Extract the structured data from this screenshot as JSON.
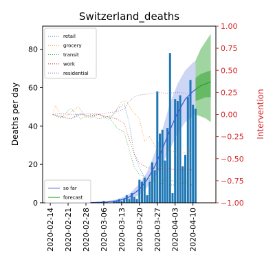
{
  "chart_data": {
    "type": "bar",
    "title": "Switzerland_deaths",
    "xlabel": "",
    "ylabel": "Deaths per day",
    "ylabel_right": "Intervention",
    "colors": {
      "bars": "#1f77b4",
      "so_far": "#3b5bdb",
      "forecast": "#2ca02c",
      "right_axis": "#d62728",
      "retail": "#1f77b4",
      "grocery": "#ff7f0e",
      "transit": "#2ca02c",
      "work": "#d62728",
      "residential": "#9467bd"
    },
    "x_ticks": [
      "2020-02-14",
      "2020-02-21",
      "2020-02-28",
      "2020-03-06",
      "2020-03-13",
      "2020-03-20",
      "2020-03-27",
      "2020-04-03",
      "2020-04-10"
    ],
    "y_ticks": [
      0,
      20,
      40,
      60,
      80
    ],
    "y_right_ticks": [
      "1.00",
      "0.75",
      "0.50",
      "0.25",
      "0.00",
      "−0.25",
      "−0.50",
      "−0.75",
      "−1.00"
    ],
    "y_right_values": [
      1.0,
      0.75,
      0.5,
      0.25,
      0.0,
      -0.25,
      -0.5,
      -0.75,
      -1.0
    ],
    "ylim": [
      0,
      92
    ],
    "ylim_right": [
      -1.0,
      1.0
    ],
    "xlim": [
      "2020-02-11",
      "2020-04-19"
    ],
    "legend_top": {
      "placement": "top-left",
      "items": [
        {
          "label": "retail",
          "key": "retail"
        },
        {
          "label": "grocery",
          "key": "grocery"
        },
        {
          "label": "transit",
          "key": "transit"
        },
        {
          "label": "work",
          "key": "work"
        },
        {
          "label": "residential",
          "key": "residential"
        }
      ]
    },
    "legend_bottom": {
      "placement": "bottom-left",
      "items": [
        {
          "label": "so far",
          "key": "so_far"
        },
        {
          "label": "forecast",
          "key": "forecast"
        }
      ]
    },
    "bars": [
      {
        "date": "2020-03-06",
        "value": 1
      },
      {
        "date": "2020-03-10",
        "value": 1
      },
      {
        "date": "2020-03-11",
        "value": 1
      },
      {
        "date": "2020-03-12",
        "value": 2
      },
      {
        "date": "2020-03-13",
        "value": 1
      },
      {
        "date": "2020-03-14",
        "value": 2
      },
      {
        "date": "2020-03-15",
        "value": 4
      },
      {
        "date": "2020-03-16",
        "value": 2
      },
      {
        "date": "2020-03-17",
        "value": 5
      },
      {
        "date": "2020-03-18",
        "value": 3
      },
      {
        "date": "2020-03-19",
        "value": 2
      },
      {
        "date": "2020-03-20",
        "value": 12
      },
      {
        "date": "2020-03-21",
        "value": 11
      },
      {
        "date": "2020-03-22",
        "value": 13
      },
      {
        "date": "2020-03-23",
        "value": 4
      },
      {
        "date": "2020-03-24",
        "value": 11
      },
      {
        "date": "2020-03-25",
        "value": 21
      },
      {
        "date": "2020-03-26",
        "value": 17
      },
      {
        "date": "2020-03-27",
        "value": 58
      },
      {
        "date": "2020-03-28",
        "value": 36
      },
      {
        "date": "2020-03-29",
        "value": 38
      },
      {
        "date": "2020-03-30",
        "value": 22
      },
      {
        "date": "2020-03-31",
        "value": 39
      },
      {
        "date": "2020-04-01",
        "value": 78
      },
      {
        "date": "2020-04-02",
        "value": 5
      },
      {
        "date": "2020-04-03",
        "value": 54
      },
      {
        "date": "2020-04-04",
        "value": 53
      },
      {
        "date": "2020-04-05",
        "value": 56
      },
      {
        "date": "2020-04-06",
        "value": 19
      },
      {
        "date": "2020-04-07",
        "value": 25
      },
      {
        "date": "2020-04-08",
        "value": 55
      },
      {
        "date": "2020-04-09",
        "value": 64
      },
      {
        "date": "2020-04-10",
        "value": 51
      },
      {
        "date": "2020-04-11",
        "value": 49
      }
    ],
    "so_far": {
      "line": [
        [
          "2020-02-14",
          0
        ],
        [
          "2020-03-01",
          0.1
        ],
        [
          "2020-03-07",
          0.4
        ],
        [
          "2020-03-12",
          1.2
        ],
        [
          "2020-03-16",
          3
        ],
        [
          "2020-03-20",
          7
        ],
        [
          "2020-03-23",
          12
        ],
        [
          "2020-03-26",
          19
        ],
        [
          "2020-03-29",
          28
        ],
        [
          "2020-04-01",
          38
        ],
        [
          "2020-04-04",
          47
        ],
        [
          "2020-04-07",
          54
        ],
        [
          "2020-04-10",
          58
        ],
        [
          "2020-04-11",
          59
        ]
      ],
      "upper": [
        [
          "2020-02-14",
          0
        ],
        [
          "2020-03-01",
          0.2
        ],
        [
          "2020-03-07",
          0.8
        ],
        [
          "2020-03-12",
          2
        ],
        [
          "2020-03-16",
          4.5
        ],
        [
          "2020-03-20",
          10
        ],
        [
          "2020-03-23",
          16
        ],
        [
          "2020-03-26",
          26
        ],
        [
          "2020-03-29",
          38
        ],
        [
          "2020-04-01",
          52
        ],
        [
          "2020-04-04",
          62
        ],
        [
          "2020-04-07",
          69
        ],
        [
          "2020-04-10",
          73
        ],
        [
          "2020-04-11",
          74
        ]
      ],
      "lower": [
        [
          "2020-02-14",
          0
        ],
        [
          "2020-03-01",
          0
        ],
        [
          "2020-03-07",
          0.2
        ],
        [
          "2020-03-12",
          0.5
        ],
        [
          "2020-03-16",
          1.5
        ],
        [
          "2020-03-20",
          4
        ],
        [
          "2020-03-23",
          8
        ],
        [
          "2020-03-26",
          13
        ],
        [
          "2020-03-29",
          20
        ],
        [
          "2020-04-01",
          28
        ],
        [
          "2020-04-04",
          36
        ],
        [
          "2020-04-07",
          42
        ],
        [
          "2020-04-10",
          45
        ],
        [
          "2020-04-11",
          46
        ]
      ]
    },
    "forecast": {
      "line": [
        [
          "2020-04-11",
          59
        ],
        [
          "2020-04-13",
          61
        ],
        [
          "2020-04-15",
          62
        ],
        [
          "2020-04-17",
          63
        ]
      ],
      "upper": [
        [
          "2020-04-11",
          74
        ],
        [
          "2020-04-13",
          80
        ],
        [
          "2020-04-15",
          84
        ],
        [
          "2020-04-17",
          88
        ]
      ],
      "lower": [
        [
          "2020-04-11",
          46
        ],
        [
          "2020-04-13",
          45
        ],
        [
          "2020-04-15",
          44
        ],
        [
          "2020-04-17",
          42
        ]
      ],
      "inner_upper": [
        [
          "2020-04-11",
          65
        ],
        [
          "2020-04-13",
          67
        ],
        [
          "2020-04-15",
          68
        ],
        [
          "2020-04-17",
          69
        ]
      ],
      "inner_lower": [
        [
          "2020-04-11",
          53
        ],
        [
          "2020-04-13",
          54
        ],
        [
          "2020-04-15",
          55
        ],
        [
          "2020-04-17",
          55
        ]
      ]
    },
    "interventions": [
      {
        "key": "retail",
        "points": [
          [
            "2020-02-15",
            0.0
          ],
          [
            "2020-02-18",
            -0.02
          ],
          [
            "2020-02-22",
            -0.05
          ],
          [
            "2020-02-26",
            0.02
          ],
          [
            "2020-03-01",
            -0.04
          ],
          [
            "2020-03-04",
            0.01
          ],
          [
            "2020-03-08",
            -0.06
          ],
          [
            "2020-03-11",
            0.05
          ],
          [
            "2020-03-14",
            0.12
          ],
          [
            "2020-03-16",
            -0.1
          ],
          [
            "2020-03-18",
            -0.45
          ],
          [
            "2020-03-20",
            -0.6
          ],
          [
            "2020-03-22",
            -0.72
          ],
          [
            "2020-03-25",
            -0.76
          ],
          [
            "2020-03-29",
            -0.78
          ],
          [
            "2020-04-02",
            -0.8
          ],
          [
            "2020-04-06",
            -0.78
          ],
          [
            "2020-04-10",
            -0.8
          ]
        ]
      },
      {
        "key": "grocery",
        "points": [
          [
            "2020-02-15",
            -0.01
          ],
          [
            "2020-02-16",
            0.1
          ],
          [
            "2020-02-19",
            -0.04
          ],
          [
            "2020-02-22",
            0.02
          ],
          [
            "2020-02-25",
            0.09
          ],
          [
            "2020-02-28",
            -0.04
          ],
          [
            "2020-03-03",
            0.01
          ],
          [
            "2020-03-07",
            -0.03
          ],
          [
            "2020-03-10",
            0.0
          ],
          [
            "2020-03-13",
            0.15
          ],
          [
            "2020-03-15",
            0.15
          ],
          [
            "2020-03-17",
            0.05
          ],
          [
            "2020-03-20",
            -0.05
          ],
          [
            "2020-03-22",
            -0.3
          ],
          [
            "2020-03-24",
            -0.25
          ],
          [
            "2020-03-27",
            -0.4
          ],
          [
            "2020-03-31",
            -0.38
          ],
          [
            "2020-04-04",
            -0.45
          ],
          [
            "2020-04-08",
            -0.42
          ],
          [
            "2020-04-10",
            -0.43
          ]
        ]
      },
      {
        "key": "transit",
        "points": [
          [
            "2020-02-15",
            0.0
          ],
          [
            "2020-02-18",
            -0.04
          ],
          [
            "2020-02-22",
            0.07
          ],
          [
            "2020-02-26",
            -0.05
          ],
          [
            "2020-03-01",
            0.0
          ],
          [
            "2020-03-04",
            -0.05
          ],
          [
            "2020-03-08",
            -0.02
          ],
          [
            "2020-03-11",
            -0.15
          ],
          [
            "2020-03-14",
            -0.2
          ],
          [
            "2020-03-16",
            -0.4
          ],
          [
            "2020-03-18",
            -0.6
          ],
          [
            "2020-03-20",
            -0.68
          ],
          [
            "2020-03-23",
            -0.72
          ],
          [
            "2020-03-27",
            -0.75
          ],
          [
            "2020-03-31",
            -0.74
          ],
          [
            "2020-04-04",
            -0.76
          ],
          [
            "2020-04-08",
            -0.77
          ],
          [
            "2020-04-10",
            -0.78
          ]
        ]
      },
      {
        "key": "work",
        "points": [
          [
            "2020-02-15",
            0.0
          ],
          [
            "2020-02-18",
            -0.03
          ],
          [
            "2020-02-22",
            -0.05
          ],
          [
            "2020-02-26",
            0.0
          ],
          [
            "2020-03-01",
            -0.02
          ],
          [
            "2020-03-04",
            0.0
          ],
          [
            "2020-03-08",
            -0.03
          ],
          [
            "2020-03-11",
            -0.05
          ],
          [
            "2020-03-14",
            -0.1
          ],
          [
            "2020-03-16",
            -0.28
          ],
          [
            "2020-03-18",
            -0.45
          ],
          [
            "2020-03-20",
            -0.55
          ],
          [
            "2020-03-23",
            -0.6
          ],
          [
            "2020-03-27",
            -0.62
          ],
          [
            "2020-03-31",
            -0.61
          ],
          [
            "2020-04-04",
            -0.63
          ],
          [
            "2020-04-08",
            -0.62
          ],
          [
            "2020-04-10",
            -0.63
          ]
        ]
      },
      {
        "key": "residential",
        "points": [
          [
            "2020-02-15",
            0.0
          ],
          [
            "2020-02-18",
            0.01
          ],
          [
            "2020-02-22",
            0.0
          ],
          [
            "2020-02-26",
            0.0
          ],
          [
            "2020-03-01",
            0.01
          ],
          [
            "2020-03-04",
            0.0
          ],
          [
            "2020-03-08",
            0.02
          ],
          [
            "2020-03-11",
            0.03
          ],
          [
            "2020-03-14",
            0.06
          ],
          [
            "2020-03-16",
            0.15
          ],
          [
            "2020-03-18",
            0.2
          ],
          [
            "2020-03-20",
            0.22
          ],
          [
            "2020-03-23",
            0.23
          ],
          [
            "2020-03-27",
            0.25
          ],
          [
            "2020-03-31",
            0.24
          ],
          [
            "2020-04-04",
            0.25
          ],
          [
            "2020-04-08",
            0.24
          ],
          [
            "2020-04-10",
            0.25
          ]
        ]
      }
    ]
  }
}
